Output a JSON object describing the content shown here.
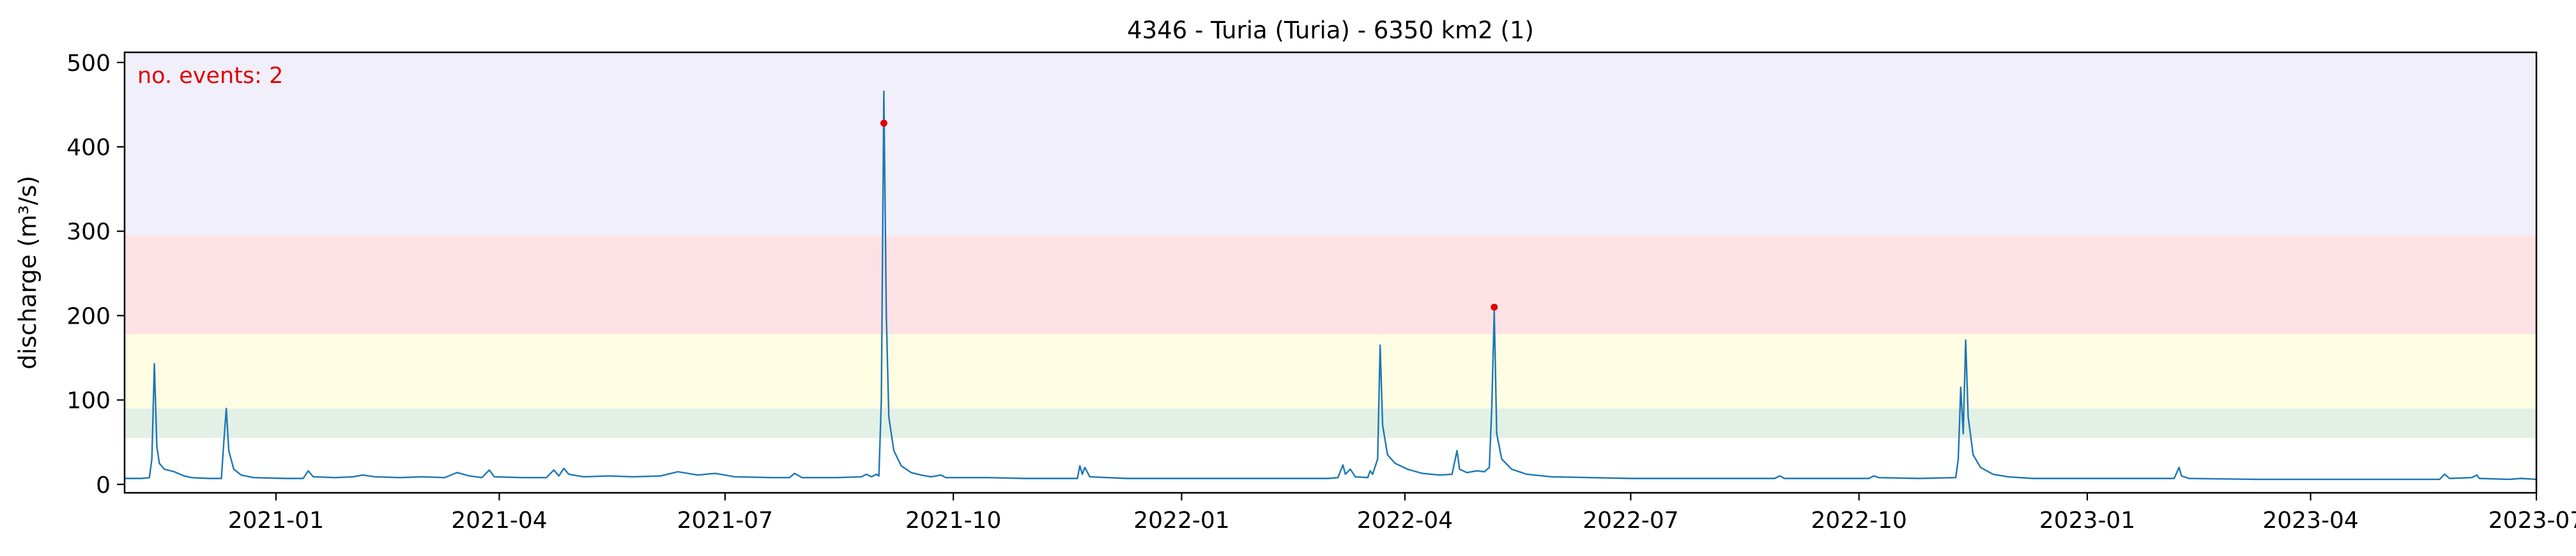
{
  "chart_data": {
    "type": "line",
    "title": "4346 - Turia (Turia) - 6350 km2 (1)",
    "xlabel": "",
    "ylabel": "discharge (m³/s)",
    "xlim": [
      "2020-11-01",
      "2023-07-01"
    ],
    "ylim": [
      -10,
      512
    ],
    "y_ticks": [
      0,
      100,
      200,
      300,
      400,
      500
    ],
    "x_ticks": [
      "2021-01",
      "2021-04",
      "2021-07",
      "2021-10",
      "2022-01",
      "2022-04",
      "2022-07",
      "2022-10",
      "2023-01",
      "2023-04",
      "2023-07"
    ],
    "grid": false,
    "annotation": {
      "text": "no. events: 2",
      "color": "#e00000"
    },
    "bands": [
      {
        "from": 55,
        "to": 90,
        "color": "#e3f0e5"
      },
      {
        "from": 90,
        "to": 178,
        "color": "#fefde3"
      },
      {
        "from": 178,
        "to": 295,
        "color": "#fde2e5"
      },
      {
        "from": 295,
        "to": 512,
        "color": "#f1effa"
      }
    ],
    "series": [
      {
        "color": "#1f77b4",
        "points": [
          [
            "2020-11-01",
            7
          ],
          [
            "2020-11-08",
            7
          ],
          [
            "2020-11-11",
            8
          ],
          [
            "2020-11-12",
            30
          ],
          [
            "2020-11-13",
            143
          ],
          [
            "2020-11-14",
            45
          ],
          [
            "2020-11-15",
            25
          ],
          [
            "2020-11-17",
            18
          ],
          [
            "2020-11-21",
            15
          ],
          [
            "2020-11-25",
            10
          ],
          [
            "2020-11-28",
            8
          ],
          [
            "2020-12-05",
            7
          ],
          [
            "2020-12-10",
            7
          ],
          [
            "2020-12-11",
            50
          ],
          [
            "2020-12-12",
            90
          ],
          [
            "2020-12-13",
            40
          ],
          [
            "2020-12-15",
            18
          ],
          [
            "2020-12-18",
            11
          ],
          [
            "2020-12-23",
            8
          ],
          [
            "2021-01-05",
            7
          ],
          [
            "2021-01-12",
            7
          ],
          [
            "2021-01-14",
            16
          ],
          [
            "2021-01-16",
            9
          ],
          [
            "2021-01-25",
            8
          ],
          [
            "2021-02-01",
            9
          ],
          [
            "2021-02-05",
            11
          ],
          [
            "2021-02-10",
            9
          ],
          [
            "2021-02-20",
            8
          ],
          [
            "2021-03-01",
            9
          ],
          [
            "2021-03-10",
            8
          ],
          [
            "2021-03-15",
            14
          ],
          [
            "2021-03-20",
            10
          ],
          [
            "2021-03-25",
            8
          ],
          [
            "2021-03-28",
            17
          ],
          [
            "2021-03-30",
            9
          ],
          [
            "2021-04-10",
            8
          ],
          [
            "2021-04-20",
            8
          ],
          [
            "2021-04-23",
            17
          ],
          [
            "2021-04-25",
            10
          ],
          [
            "2021-04-27",
            19
          ],
          [
            "2021-04-29",
            12
          ],
          [
            "2021-05-05",
            9
          ],
          [
            "2021-05-15",
            10
          ],
          [
            "2021-05-25",
            9
          ],
          [
            "2021-06-05",
            10
          ],
          [
            "2021-06-12",
            15
          ],
          [
            "2021-06-20",
            11
          ],
          [
            "2021-06-27",
            13
          ],
          [
            "2021-07-05",
            9
          ],
          [
            "2021-07-20",
            8
          ],
          [
            "2021-07-27",
            8
          ],
          [
            "2021-07-29",
            13
          ],
          [
            "2021-08-01",
            8
          ],
          [
            "2021-08-15",
            8
          ],
          [
            "2021-08-25",
            9
          ],
          [
            "2021-08-27",
            12
          ],
          [
            "2021-08-29",
            9
          ],
          [
            "2021-08-31",
            12
          ],
          [
            "2021-09-01",
            10
          ],
          [
            "2021-09-02",
            100
          ],
          [
            "2021-09-03",
            466
          ],
          [
            "2021-09-04",
            200
          ],
          [
            "2021-09-05",
            80
          ],
          [
            "2021-09-07",
            40
          ],
          [
            "2021-09-10",
            22
          ],
          [
            "2021-09-14",
            14
          ],
          [
            "2021-09-18",
            11
          ],
          [
            "2021-09-22",
            9
          ],
          [
            "2021-09-26",
            11
          ],
          [
            "2021-09-28",
            8
          ],
          [
            "2021-10-05",
            8
          ],
          [
            "2021-10-15",
            8
          ],
          [
            "2021-10-30",
            7
          ],
          [
            "2021-11-15",
            7
          ],
          [
            "2021-11-20",
            7
          ],
          [
            "2021-11-21",
            22
          ],
          [
            "2021-11-22",
            12
          ],
          [
            "2021-11-23",
            20
          ],
          [
            "2021-11-25",
            9
          ],
          [
            "2021-12-10",
            7
          ],
          [
            "2022-01-10",
            7
          ],
          [
            "2022-02-10",
            7
          ],
          [
            "2022-03-01",
            7
          ],
          [
            "2022-03-05",
            8
          ],
          [
            "2022-03-07",
            23
          ],
          [
            "2022-03-08",
            12
          ],
          [
            "2022-03-10",
            18
          ],
          [
            "2022-03-12",
            9
          ],
          [
            "2022-03-17",
            8
          ],
          [
            "2022-03-18",
            16
          ],
          [
            "2022-03-19",
            12
          ],
          [
            "2022-03-21",
            30
          ],
          [
            "2022-03-22",
            165
          ],
          [
            "2022-03-23",
            70
          ],
          [
            "2022-03-25",
            35
          ],
          [
            "2022-03-28",
            25
          ],
          [
            "2022-04-02",
            18
          ],
          [
            "2022-04-08",
            13
          ],
          [
            "2022-04-15",
            11
          ],
          [
            "2022-04-20",
            12
          ],
          [
            "2022-04-22",
            40
          ],
          [
            "2022-04-23",
            18
          ],
          [
            "2022-04-26",
            14
          ],
          [
            "2022-04-30",
            16
          ],
          [
            "2022-05-03",
            15
          ],
          [
            "2022-05-05",
            20
          ],
          [
            "2022-05-06",
            90
          ],
          [
            "2022-05-07",
            205
          ],
          [
            "2022-05-08",
            60
          ],
          [
            "2022-05-10",
            30
          ],
          [
            "2022-05-14",
            18
          ],
          [
            "2022-05-20",
            12
          ],
          [
            "2022-05-30",
            9
          ],
          [
            "2022-06-15",
            8
          ],
          [
            "2022-07-01",
            7
          ],
          [
            "2022-08-01",
            7
          ],
          [
            "2022-08-28",
            7
          ],
          [
            "2022-08-30",
            10
          ],
          [
            "2022-09-01",
            7
          ],
          [
            "2022-09-25",
            7
          ],
          [
            "2022-10-05",
            7
          ],
          [
            "2022-10-07",
            10
          ],
          [
            "2022-10-09",
            8
          ],
          [
            "2022-10-25",
            7
          ],
          [
            "2022-11-09",
            8
          ],
          [
            "2022-11-10",
            30
          ],
          [
            "2022-11-11",
            115
          ],
          [
            "2022-11-12",
            60
          ],
          [
            "2022-11-13",
            171
          ],
          [
            "2022-11-14",
            80
          ],
          [
            "2022-11-16",
            35
          ],
          [
            "2022-11-19",
            20
          ],
          [
            "2022-11-24",
            12
          ],
          [
            "2022-11-30",
            9
          ],
          [
            "2022-12-10",
            7
          ],
          [
            "2023-01-01",
            7
          ],
          [
            "2023-02-05",
            7
          ],
          [
            "2023-02-07",
            20
          ],
          [
            "2023-02-08",
            10
          ],
          [
            "2023-02-11",
            7
          ],
          [
            "2023-03-10",
            6
          ],
          [
            "2023-04-10",
            6
          ],
          [
            "2023-05-15",
            6
          ],
          [
            "2023-05-23",
            6
          ],
          [
            "2023-05-25",
            12
          ],
          [
            "2023-05-27",
            7
          ],
          [
            "2023-06-05",
            8
          ],
          [
            "2023-06-07",
            11
          ],
          [
            "2023-06-08",
            7
          ],
          [
            "2023-06-20",
            6
          ],
          [
            "2023-06-25",
            7
          ],
          [
            "2023-07-01",
            6
          ]
        ]
      },
      {
        "type": "scatter",
        "color": "#e00000",
        "points": [
          [
            "2021-09-03",
            428
          ],
          [
            "2022-05-07",
            210
          ]
        ]
      }
    ]
  }
}
